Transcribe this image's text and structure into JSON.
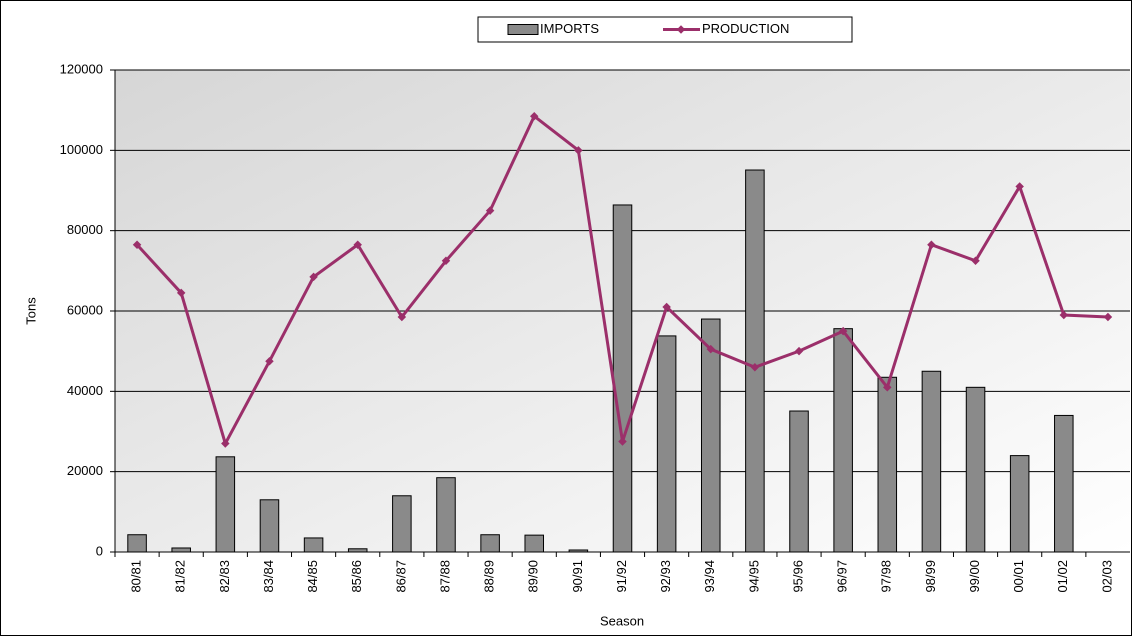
{
  "chart_data": {
    "type": "bar_line",
    "x_label": "Season",
    "y_label": "Tons",
    "categories": [
      "80/81",
      "81/82",
      "82/83",
      "83/84",
      "84/85",
      "85/86",
      "86/87",
      "87/88",
      "88/89",
      "89/90",
      "90/91",
      "91/92",
      "92/93",
      "93/94",
      "94/95",
      "95/96",
      "96/97",
      "97/98",
      "98/99",
      "99/00",
      "00/01",
      "01/02",
      "02/03"
    ],
    "series": [
      {
        "name": "IMPORTS",
        "kind": "bar",
        "color": "#8a8a8a",
        "values": [
          4300,
          1000,
          23700,
          13000,
          3500,
          800,
          14000,
          18500,
          4300,
          4200,
          500,
          86400,
          53800,
          58000,
          95100,
          35100,
          55600,
          43500,
          45000,
          41000,
          24000,
          34000,
          0
        ]
      },
      {
        "name": "PRODUCTION",
        "kind": "line",
        "color": "#9b2f6a",
        "values": [
          76500,
          64500,
          27000,
          47500,
          68500,
          76500,
          58500,
          72500,
          85000,
          108500,
          100000,
          27500,
          61000,
          50500,
          46000,
          50000,
          55000,
          41000,
          76500,
          72500,
          91000,
          59000,
          58500
        ]
      }
    ],
    "ylim": [
      0,
      120000
    ],
    "yticks": [
      0,
      20000,
      40000,
      60000,
      80000,
      100000,
      120000
    ],
    "grid": true,
    "legend": "top"
  }
}
